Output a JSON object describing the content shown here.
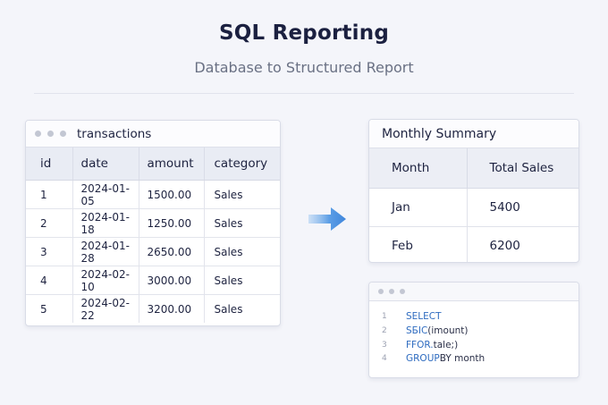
{
  "header": {
    "title": "SQL Reporting",
    "subtitle": "Database to Structured Report"
  },
  "source_table": {
    "name": "transactions",
    "columns": [
      "id",
      "date",
      "amount",
      "category"
    ],
    "rows": [
      [
        "1",
        "2024-01-05",
        "1500.00",
        "Sales"
      ],
      [
        "2",
        "2024-01-18",
        "1250.00",
        "Sales"
      ],
      [
        "3",
        "2024-01-28",
        "2650.00",
        "Sales"
      ],
      [
        "4",
        "2024-02-10",
        "3000.00",
        "Sales"
      ],
      [
        "5",
        "2024-02-22",
        "3200.00",
        "Sales"
      ]
    ]
  },
  "arrow": {
    "icon": "right-arrow-icon",
    "color": "#4a90e2"
  },
  "summary": {
    "title": "Monthly Summary",
    "columns": [
      "Month",
      "Total Sales"
    ],
    "rows": [
      [
        "Jan",
        "5400"
      ],
      [
        "Feb",
        "6200"
      ]
    ]
  },
  "code": {
    "lines": [
      {
        "num": "1",
        "kw": "SELECT",
        "rest": ""
      },
      {
        "num": "2",
        "kw": "SБIC",
        "rest": " (imount)"
      },
      {
        "num": "3",
        "kw": "FFOR.",
        "rest": " tale;)"
      },
      {
        "num": "4",
        "kw": "GROUP",
        "rest": " BY month"
      }
    ]
  }
}
